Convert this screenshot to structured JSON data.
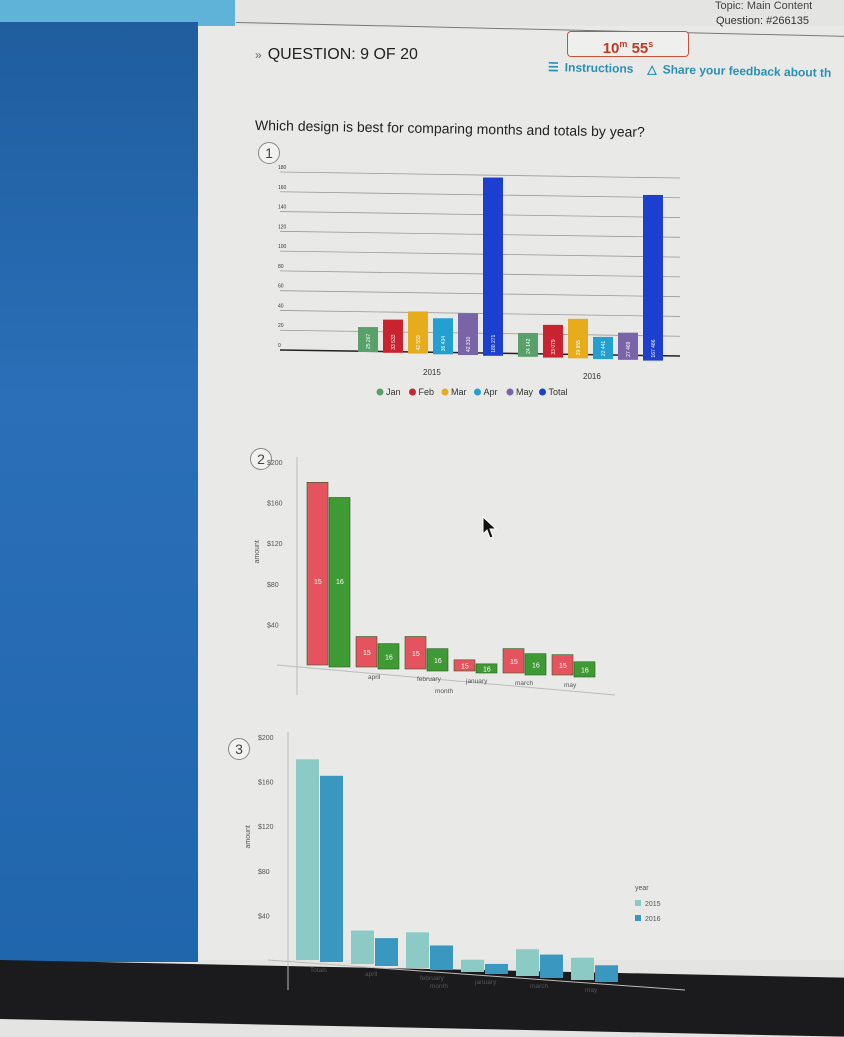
{
  "header": {
    "topic_label": "Topic:",
    "topic_value": "Main Content",
    "question_label": "Question:",
    "question_id": "#266135",
    "timer_minutes": "10",
    "timer_min_unit": "m",
    "timer_seconds": "55",
    "timer_sec_unit": "s",
    "question_progress": "QUESTION: 9 OF 20",
    "instructions_label": "Instructions",
    "feedback_label": "Share your feedback about th"
  },
  "question_text": "Which design is best for comparing months and totals by year?",
  "options": [
    "1",
    "2",
    "3"
  ],
  "colors": {
    "sidebar": "#2066ad",
    "timer": "#c23a22",
    "link": "#2a8fb5"
  },
  "chart_data": [
    {
      "type": "bar",
      "option": "1",
      "categories": [
        "2015",
        "2016"
      ],
      "series": [
        {
          "name": "Jan",
          "color": "#5aa06a",
          "values": [
            25.267,
            24.142
          ],
          "labels": [
            "25 267",
            "24 142"
          ]
        },
        {
          "name": "Feb",
          "color": "#c8232e",
          "values": [
            33.533,
            33.079
          ],
          "labels": [
            "33 533",
            "33 079"
          ]
        },
        {
          "name": "Mar",
          "color": "#e6ac1c",
          "values": [
            42.559,
            39.955
          ],
          "labels": [
            "42 559",
            "39 955"
          ]
        },
        {
          "name": "Apr",
          "color": "#23a0d0",
          "values": [
            36.434,
            22.441
          ],
          "labels": [
            "36 434",
            "22 441"
          ]
        },
        {
          "name": "May",
          "color": "#7a64a8",
          "values": [
            42.31,
            27.469
          ],
          "labels": [
            "42 310",
            "27 469"
          ]
        },
        {
          "name": "Total",
          "color": "#1d3fd0",
          "values": [
            180.271,
            167.486
          ],
          "labels": [
            "180 271",
            "167 486"
          ]
        }
      ],
      "yticks": [
        "0",
        "20",
        "40",
        "60",
        "80",
        "100",
        "120",
        "140",
        "160",
        "180"
      ],
      "ylim": [
        0,
        180
      ],
      "grid": true,
      "legend": "bottom"
    },
    {
      "type": "bar",
      "option": "2",
      "categories": [
        "",
        "april",
        "february",
        "january",
        "march",
        "may"
      ],
      "series": [
        {
          "name": "15",
          "color": "#e5545e",
          "values": [
            180,
            30,
            32,
            11,
            24,
            20
          ]
        },
        {
          "name": "16",
          "color": "#3f9a35",
          "values": [
            167,
            25,
            22,
            9,
            21,
            15
          ]
        }
      ],
      "bar_label_texts": [
        "15",
        "16"
      ],
      "yticks": [
        "$200",
        "$160",
        "$120",
        "$80",
        "$40"
      ],
      "ylim": [
        0,
        200
      ],
      "xlabel": "month",
      "ylabel": "amount"
    },
    {
      "type": "bar",
      "option": "3",
      "categories": [
        "Totals",
        "april",
        "february",
        "january",
        "march",
        "may"
      ],
      "series": [
        {
          "name": "2015",
          "color": "#8ccac6",
          "values": [
            180,
            30,
            32,
            11,
            24,
            20
          ]
        },
        {
          "name": "2016",
          "color": "#3a97bf",
          "values": [
            167,
            25,
            22,
            9,
            21,
            15
          ]
        }
      ],
      "yticks": [
        "$200",
        "$160",
        "$120",
        "$80",
        "$40"
      ],
      "ylim": [
        0,
        200
      ],
      "xlabel": "month",
      "ylabel": "amount",
      "legend_title": "year",
      "legend": "right"
    }
  ]
}
